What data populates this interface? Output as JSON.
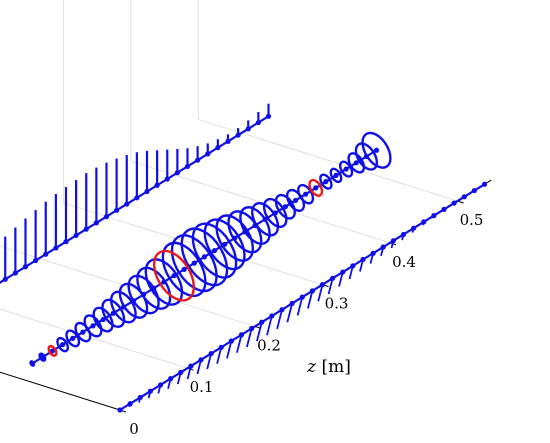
{
  "chart_data": {
    "type": "line",
    "title": "",
    "xlabel": "z [m]",
    "x_symbol": "z",
    "x_unit": "[m]",
    "x_ticks": [
      "0",
      "0.1",
      "0.2",
      "0.3",
      "0.4",
      "0.5"
    ],
    "x_tick_values": [
      0,
      0.1,
      0.2,
      0.3,
      0.4,
      0.5
    ],
    "xlim": [
      0,
      0.55
    ],
    "grid": true,
    "colors": {
      "series": "#1010e6",
      "highlight": "#e61a1a",
      "reference": "#000000",
      "grid": "#d9d9d9",
      "axis": "#000000"
    },
    "series": [
      {
        "z": [
          0,
          0.015,
          0.03,
          0.045,
          0.06,
          0.075,
          0.09,
          0.105,
          0.12,
          0.135,
          0.15,
          0.165,
          0.18,
          0.195,
          0.21,
          0.225,
          0.24,
          0.255,
          0.27,
          0.285,
          0.3,
          0.315,
          0.33,
          0.345,
          0.36,
          0.375,
          0.39,
          0.405,
          0.42,
          0.435,
          0.45,
          0.465,
          0.48,
          0.495,
          0.51,
          0.525,
          0.54
        ],
        "amplitude": [
          0.08,
          0.14,
          0.2,
          0.26,
          0.32,
          0.37,
          0.42,
          0.47,
          0.52,
          0.57,
          0.61,
          0.65,
          0.69,
          0.72,
          0.75,
          0.77,
          0.78,
          0.79,
          0.8,
          0.79,
          0.77,
          0.74,
          0.7,
          0.65,
          0.58,
          0.5,
          0.42,
          0.34,
          0.26,
          0.2,
          0.15,
          0.12,
          0.1,
          0.1,
          0.12,
          0.15,
          0.18
        ],
        "highlight_z": []
      },
      {
        "z": [
          0.03,
          0.045,
          0.06,
          0.075,
          0.09,
          0.105,
          0.12,
          0.135,
          0.15,
          0.165,
          0.18,
          0.195,
          0.21,
          0.225,
          0.24,
          0.255,
          0.27,
          0.285,
          0.3,
          0.315,
          0.33,
          0.345,
          0.36,
          0.375,
          0.39,
          0.405,
          0.42,
          0.435,
          0.45,
          0.465,
          0.48,
          0.495,
          0.51,
          0.525,
          0.54
        ],
        "amplitude": [
          0.05,
          0.08,
          0.11,
          0.15,
          0.18,
          0.21,
          0.24,
          0.27,
          0.31,
          0.35,
          0.39,
          0.43,
          0.47,
          0.52,
          0.57,
          0.61,
          0.64,
          0.65,
          0.62,
          0.57,
          0.52,
          0.47,
          0.42,
          0.37,
          0.32,
          0.27,
          0.24,
          0.21,
          0.18,
          0.16,
          0.15,
          0.17,
          0.22,
          0.3,
          0.4
        ],
        "highlight_z": [
          0.06,
          0.24,
          0.45
        ]
      },
      {
        "z": [
          0,
          0.015,
          0.03,
          0.045,
          0.06,
          0.075,
          0.09,
          0.105,
          0.12,
          0.135,
          0.15,
          0.165,
          0.18,
          0.195,
          0.21,
          0.225,
          0.24,
          0.255,
          0.27,
          0.285,
          0.3,
          0.315,
          0.33,
          0.345,
          0.36,
          0.375,
          0.39,
          0.405,
          0.42,
          0.435,
          0.45,
          0.465,
          0.48,
          0.495,
          0.51,
          0.525,
          0.54
        ],
        "amplitude": [
          0.05,
          0.1,
          0.16,
          0.22,
          0.27,
          0.32,
          0.37,
          0.41,
          0.45,
          0.49,
          0.52,
          0.55,
          0.57,
          0.59,
          0.6,
          0.61,
          0.61,
          0.6,
          0.58,
          0.56,
          0.53,
          0.5,
          0.46,
          0.42,
          0.38,
          0.33,
          0.28,
          0.23,
          0.18,
          0.14,
          0.1,
          0.07,
          0.05,
          0.04,
          0.03,
          0.03,
          0.03
        ],
        "highlight_z": []
      }
    ]
  }
}
